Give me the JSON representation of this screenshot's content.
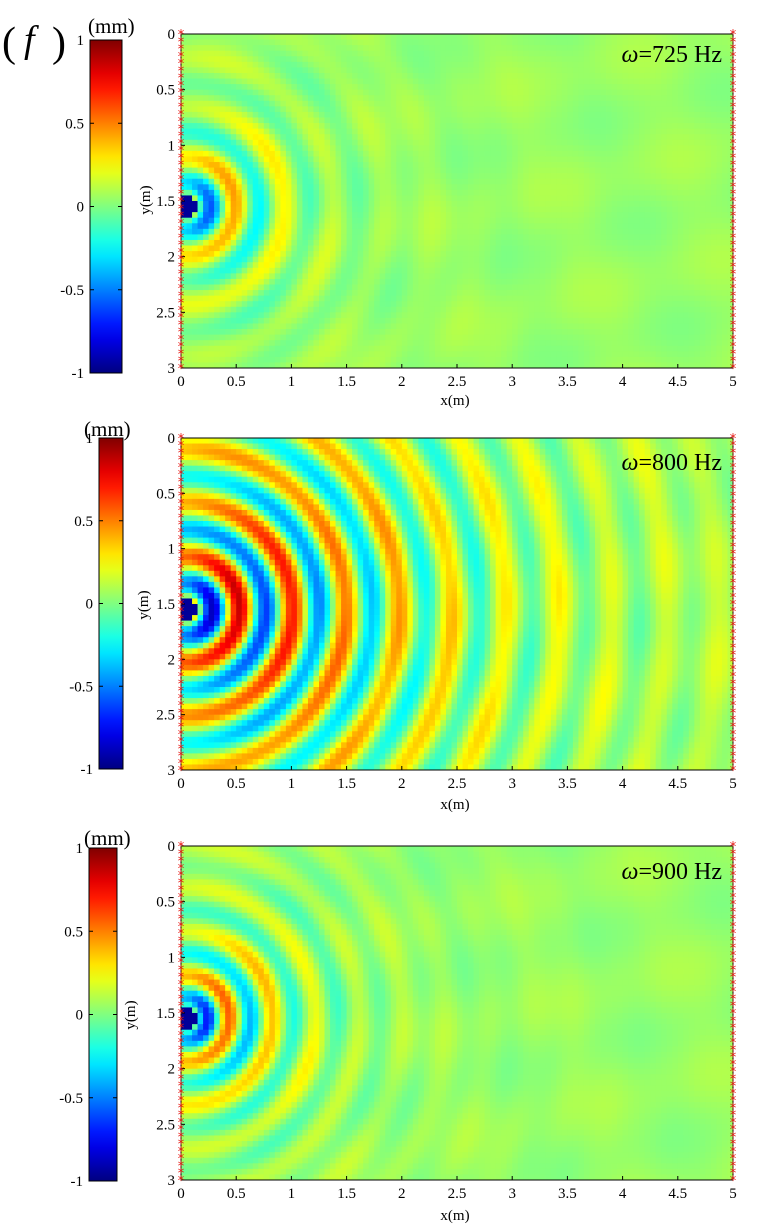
{
  "figure_label": {
    "open": "(",
    "letter": "f",
    "close": ")"
  },
  "chart_data": [
    {
      "type": "heatmap",
      "title": "ω=725 Hz",
      "omega_symbol": "ω",
      "omega_value": "=725 Hz",
      "xlabel": "x(m)",
      "ylabel": "y(m)",
      "xlim": [
        0,
        5
      ],
      "ylim": [
        3,
        0
      ],
      "x_ticks": [
        "0",
        "0.5",
        "1",
        "1.5",
        "2",
        "2.5",
        "3",
        "3.5",
        "4",
        "4.5",
        "5"
      ],
      "y_ticks": [
        "0",
        "0.5",
        "1",
        "1.5",
        "2",
        "2.5",
        "3"
      ],
      "source": {
        "x": 0.05,
        "y": 1.55
      },
      "colorbar": {
        "unit": "(mm)",
        "min": -1,
        "max": 1,
        "ticks": [
          "1",
          "0.5",
          "0",
          "-0.5",
          "-1"
        ],
        "colormap": "jet"
      },
      "boundary_markers": "red asterisks on left and right edges",
      "field": {
        "k": 14,
        "amp": 0.85,
        "decay": 1.6,
        "bg": 0.05
      }
    },
    {
      "type": "heatmap",
      "title": "ω=800 Hz",
      "omega_symbol": "ω",
      "omega_value": "=800 Hz",
      "xlabel": "x(m)",
      "ylabel": "y(m)",
      "xlim": [
        0,
        5
      ],
      "ylim": [
        3,
        0
      ],
      "x_ticks": [
        "0",
        "0.5",
        "1",
        "1.5",
        "2",
        "2.5",
        "3",
        "3.5",
        "4",
        "4.5",
        "5"
      ],
      "y_ticks": [
        "0",
        "0.5",
        "1",
        "1.5",
        "2",
        "2.5",
        "3"
      ],
      "source": {
        "x": 0.05,
        "y": 1.55
      },
      "colorbar": {
        "unit": "(mm)",
        "min": -1,
        "max": 1,
        "ticks": [
          "1",
          "0.5",
          "0",
          "-0.5",
          "-1"
        ],
        "colormap": "jet"
      },
      "boundary_markers": "red asterisks on left and right edges",
      "field": {
        "k": 13,
        "amp": 1.05,
        "decay": 0.55,
        "bg": 0.08
      }
    },
    {
      "type": "heatmap",
      "title": "ω=900 Hz",
      "omega_symbol": "ω",
      "omega_value": "=900 Hz",
      "xlabel": "x(m)",
      "ylabel": "y(m)",
      "xlim": [
        0,
        5
      ],
      "ylim": [
        3,
        0
      ],
      "x_ticks": [
        "0",
        "0.5",
        "1",
        "1.5",
        "2",
        "2.5",
        "3",
        "3.5",
        "4",
        "4.5",
        "5"
      ],
      "y_ticks": [
        "0",
        "0.5",
        "1",
        "1.5",
        "2",
        "2.5",
        "3"
      ],
      "source": {
        "x": 0.05,
        "y": 1.55
      },
      "colorbar": {
        "unit": "(mm)",
        "min": -1,
        "max": 1,
        "ticks": [
          "1",
          "0.5",
          "0",
          "-0.5",
          "-1"
        ],
        "colormap": "jet"
      },
      "boundary_markers": "red asterisks on left and right edges",
      "field": {
        "k": 16,
        "amp": 0.95,
        "decay": 1.4,
        "bg": 0.05
      }
    }
  ]
}
